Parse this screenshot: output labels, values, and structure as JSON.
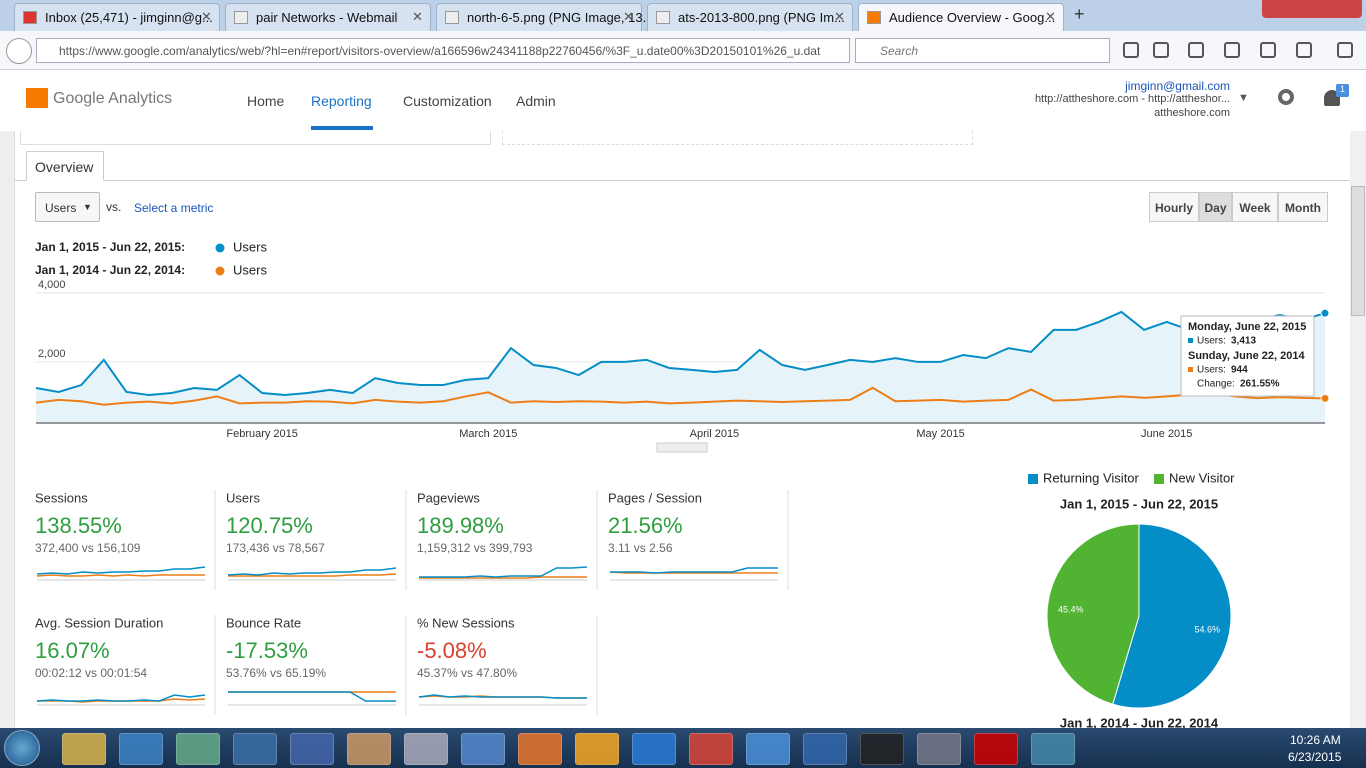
{
  "browser": {
    "tabs": [
      "Inbox (25,471) - jimginn@g...",
      "pair Networks - Webmail",
      "north-6-5.png (PNG Image, 13...",
      "ats-2013-800.png (PNG Im...",
      "Audience Overview - Goog..."
    ],
    "active_tab": 4,
    "url": "https://www.google.com/analytics/web/?hl=en#report/visitors-overview/a166596w24341188p22760456/%3F_u.date00%3D20150101%26_u.dat",
    "search_placeholder": "Search"
  },
  "header": {
    "product": "Google Analytics",
    "nav": [
      "Home",
      "Reporting",
      "Customization",
      "Admin"
    ],
    "active_nav": 1,
    "email": "jimginn@gmail.com",
    "property": "http://attheshore.com - http://attheshor...",
    "view": "attheshore.com",
    "notifications": "1"
  },
  "report": {
    "tab": "Overview",
    "metric": "Users",
    "vs": "vs.",
    "select_metric": "Select a metric",
    "granularity": [
      "Hourly",
      "Day",
      "Week",
      "Month"
    ],
    "active_granularity": 1
  },
  "chart_data": [
    {
      "type": "line",
      "grid": true,
      "categories": [
        null,
        null,
        null,
        null,
        null,
        null,
        null,
        null,
        null,
        null,
        "February 2015",
        null,
        null,
        null,
        null,
        null,
        null,
        null,
        null,
        null,
        "March 2015",
        null,
        null,
        null,
        null,
        null,
        null,
        null,
        null,
        null,
        "April 2015",
        null,
        null,
        null,
        null,
        null,
        null,
        null,
        null,
        null,
        "May 2015",
        null,
        null,
        null,
        null,
        null,
        null,
        null,
        null,
        null,
        "June 2015",
        null,
        null,
        null,
        null,
        null,
        null,
        null
      ],
      "ylim": [
        230,
        4230
      ],
      "yticks": [
        {
          "value": 2000,
          "label": "2,000"
        },
        {
          "value": 4000,
          "label": "4,000"
        }
      ],
      "series": [
        {
          "name": "Users",
          "range": "Jan 1, 2015 - Jun 22, 2015:",
          "color": "#058dc7",
          "values": [
            1245,
            1130,
            1330,
            2060,
            1130,
            1040,
            1100,
            1245,
            1190,
            1620,
            1100,
            1040,
            1100,
            1190,
            1100,
            1530,
            1390,
            1330,
            1330,
            1480,
            1530,
            2400,
            1910,
            1825,
            1620,
            2000,
            2000,
            2060,
            1825,
            1770,
            1710,
            1770,
            2350,
            1910,
            1770,
            1910,
            2060,
            2000,
            2110,
            2000,
            2000,
            2200,
            2110,
            2400,
            2290,
            2930,
            2930,
            3160,
            3450,
            2930,
            3160,
            2930,
            3160,
            3275,
            3220,
            3360,
            3220,
            3413
          ]
        },
        {
          "name": "Users",
          "range": "Jan 1, 2014 - Jun 22, 2014:",
          "color": "#ed7e17",
          "values": [
            820,
            900,
            860,
            760,
            820,
            850,
            800,
            880,
            1000,
            800,
            820,
            820,
            860,
            850,
            800,
            900,
            850,
            820,
            860,
            1000,
            1120,
            820,
            860,
            840,
            860,
            850,
            820,
            850,
            800,
            820,
            850,
            880,
            860,
            840,
            860,
            880,
            900,
            1250,
            860,
            880,
            900,
            850,
            880,
            900,
            1200,
            880,
            900,
            950,
            1000,
            960,
            1000,
            1050,
            1100,
            1000,
            950,
            980,
            960,
            944
          ]
        }
      ],
      "tooltip": {
        "title1": "Monday, June 22, 2015",
        "label1": "Users:",
        "value1": "3,413",
        "title2": "Sunday, June 22, 2014",
        "label2": "Users:",
        "value2": "944",
        "change_label": "Change:",
        "change": "261.55%"
      }
    },
    {
      "type": "pie",
      "title": "Jan 1, 2015 - Jun 22, 2015",
      "next_title": "Jan 1, 2014 - Jun 22, 2014",
      "categories": [
        "Returning Visitor",
        "New Visitor"
      ],
      "values": [
        54.6,
        45.4
      ],
      "value_labels": [
        "54.6%",
        "45.4%"
      ],
      "colors": [
        "#058dc7",
        "#50b432"
      ]
    }
  ],
  "spark_ylim": [
    0,
    10
  ],
  "metrics": [
    {
      "name": "Sessions",
      "change": "138.55%",
      "comparison": "372,400 vs 156,109",
      "trend": "positive",
      "current": [
        3,
        3.5,
        3,
        4,
        3.5,
        4,
        4,
        4.5,
        4.5,
        5.5,
        5.5,
        6.5
      ],
      "previous": [
        2,
        2.5,
        2,
        2,
        2.5,
        2,
        2.5,
        2,
        2.5,
        2.5,
        2.5,
        2.5
      ]
    },
    {
      "name": "Users",
      "change": "120.75%",
      "comparison": "173,436 vs 78,567",
      "trend": "positive",
      "current": [
        2.5,
        3,
        2.5,
        3.5,
        3,
        3.5,
        3.5,
        4,
        4,
        5,
        5,
        6
      ],
      "previous": [
        2,
        2,
        2,
        2,
        2,
        2,
        2,
        2,
        2.5,
        2.5,
        2.5,
        3
      ]
    },
    {
      "name": "Pageviews",
      "change": "189.98%",
      "comparison": "1,159,312 vs 399,793",
      "trend": "positive",
      "current": [
        1.5,
        1.5,
        1.5,
        1.5,
        2,
        1.5,
        2,
        2,
        2,
        6,
        6,
        6.5
      ],
      "previous": [
        1,
        1,
        1,
        1,
        1,
        1,
        1,
        1,
        1.5,
        1.5,
        1.5,
        1.5
      ]
    },
    {
      "name": "Pages / Session",
      "change": "21.56%",
      "comparison": "3.11 vs 2.56",
      "trend": "positive",
      "current": [
        4,
        4,
        4,
        3.5,
        4,
        4,
        4,
        4,
        4,
        6,
        6,
        6
      ],
      "previous": [
        4,
        3.5,
        3.5,
        3.5,
        3.5,
        3.5,
        3.5,
        3.5,
        3.5,
        3.5,
        3.5,
        3.5
      ]
    },
    {
      "name": "Avg. Session Duration",
      "change": "16.07%",
      "comparison": "00:02:12 vs 00:01:54",
      "trend": "positive",
      "current": [
        2,
        2.5,
        2,
        2,
        2.5,
        2,
        2,
        2.5,
        2,
        5,
        4,
        5
      ],
      "previous": [
        2,
        2,
        2,
        1.5,
        2,
        2,
        2,
        2,
        2,
        3,
        2.5,
        3
      ]
    },
    {
      "name": "Bounce Rate",
      "change": "-17.53%",
      "comparison": "53.76% vs 65.19%",
      "trend": "positive",
      "current": [
        6.5,
        6.5,
        6.5,
        6.5,
        6.5,
        6.5,
        6.5,
        6.5,
        6.5,
        2,
        2,
        2
      ],
      "previous": [
        6.5,
        6.5,
        6.5,
        6.5,
        6.5,
        6.5,
        6.5,
        6.5,
        6.5,
        6.5,
        6.5,
        6.5
      ]
    },
    {
      "name": "% New Sessions",
      "change": "-5.08%",
      "comparison": "45.37% vs 47.80%",
      "trend": "negative",
      "current": [
        4,
        5,
        4,
        4.5,
        4,
        4,
        4,
        4,
        4,
        3.5,
        3.5,
        3.5
      ],
      "previous": [
        4,
        4.5,
        4,
        4,
        4.5,
        4,
        4,
        4,
        4,
        3.5,
        3.5,
        3.5
      ]
    }
  ],
  "taskbar": {
    "time": "10:26 AM",
    "date": "6/23/2015"
  }
}
